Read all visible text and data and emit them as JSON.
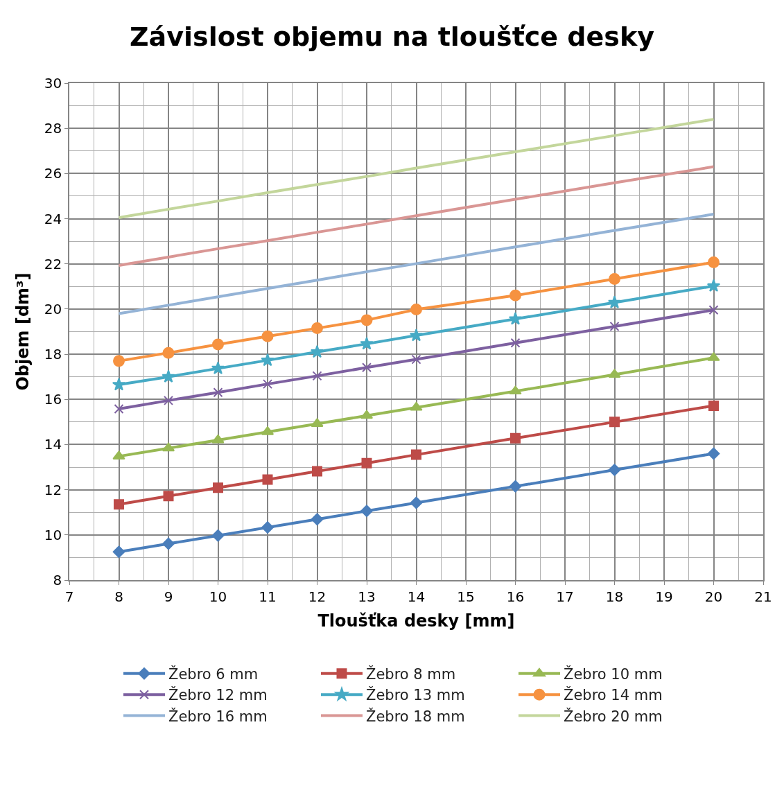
{
  "chart_data": {
    "type": "line",
    "title": "Závislost objemu na tloušťce desky",
    "xlabel": "Tloušťka desky [mm]",
    "ylabel": "Objem [dm³]",
    "x": [
      8,
      9,
      10,
      11,
      12,
      13,
      14,
      16,
      18,
      20
    ],
    "xlim": [
      7,
      21
    ],
    "xticks": [
      7,
      8,
      9,
      10,
      11,
      12,
      13,
      14,
      15,
      16,
      17,
      18,
      19,
      20,
      21
    ],
    "ylim": [
      8,
      30
    ],
    "yticks": [
      8,
      10,
      12,
      14,
      16,
      18,
      20,
      22,
      24,
      26,
      28,
      30
    ],
    "grid": true,
    "legend": "bottom",
    "series": [
      {
        "name": "Žebro 6 mm",
        "color": "#4a7ebb",
        "marker": "diamond",
        "values": [
          9.25,
          9.61,
          9.97,
          10.33,
          10.69,
          11.06,
          11.42,
          12.15,
          12.88,
          13.6
        ]
      },
      {
        "name": "Žebro 8 mm",
        "color": "#be4b48",
        "marker": "square",
        "values": [
          11.35,
          11.72,
          12.09,
          12.45,
          12.82,
          13.18,
          13.55,
          14.28,
          15.0,
          15.72
        ]
      },
      {
        "name": "Žebro 10 mm",
        "color": "#98b954",
        "marker": "triangle",
        "values": [
          13.48,
          13.84,
          14.2,
          14.56,
          14.92,
          15.28,
          15.64,
          16.36,
          17.1,
          17.84
        ]
      },
      {
        "name": "Žebro 12 mm",
        "color": "#7d60a0",
        "marker": "cross",
        "values": [
          15.58,
          15.95,
          16.31,
          16.68,
          17.04,
          17.41,
          17.77,
          18.5,
          19.23,
          19.96
        ]
      },
      {
        "name": "Žebro 13 mm",
        "color": "#46aac5",
        "marker": "star",
        "values": [
          16.65,
          17.0,
          17.37,
          17.73,
          18.1,
          18.46,
          18.83,
          19.56,
          20.29,
          21.02
        ]
      },
      {
        "name": "Žebro 14 mm",
        "color": "#f69240",
        "marker": "circle",
        "values": [
          17.7,
          18.06,
          18.43,
          18.79,
          19.15,
          19.51,
          19.98,
          20.6,
          21.33,
          22.07
        ]
      },
      {
        "name": "Žebro 16 mm",
        "color": "#94b3d6",
        "marker": "none",
        "values": [
          19.8,
          20.17,
          20.54,
          20.91,
          21.28,
          21.65,
          22.01,
          22.75,
          23.48,
          24.2
        ]
      },
      {
        "name": "Žebro 18 mm",
        "color": "#d99694",
        "marker": "none",
        "values": [
          21.93,
          22.3,
          22.67,
          23.03,
          23.4,
          23.76,
          24.13,
          24.86,
          25.59,
          26.3
        ]
      },
      {
        "name": "Žebro 20 mm",
        "color": "#c3d69b",
        "marker": "none",
        "values": [
          24.05,
          24.42,
          24.78,
          25.15,
          25.51,
          25.87,
          26.24,
          26.96,
          27.68,
          28.4
        ]
      }
    ]
  }
}
